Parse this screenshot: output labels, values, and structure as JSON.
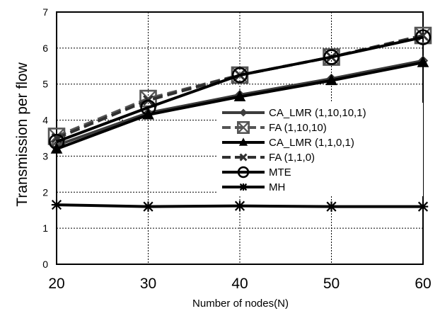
{
  "chart_data": {
    "type": "line",
    "title": "",
    "xlabel": "Number of nodes(N)",
    "ylabel": "Transmission per flow",
    "x": [
      20,
      30,
      40,
      50,
      60
    ],
    "xticks": [
      "20",
      "30",
      "40",
      "50",
      "60"
    ],
    "yticks": [
      "0",
      "1",
      "2",
      "3",
      "4",
      "5",
      "6",
      "7"
    ],
    "xlim": [
      20,
      60
    ],
    "ylim": [
      0,
      7
    ],
    "grid": true,
    "legend_position": "right",
    "series": [
      {
        "name": "CA_LMR (1,10,10,1)",
        "values": [
          3.3,
          4.2,
          4.7,
          5.15,
          5.65
        ],
        "marker": "diamond",
        "color": "#3c3c3c",
        "dash": "solid"
      },
      {
        "name": "FA (1,10,10)",
        "values": [
          3.55,
          4.6,
          5.25,
          5.75,
          6.35
        ],
        "marker": "square",
        "color": "#555555",
        "dash": "dashed"
      },
      {
        "name": "CA_LMR (1,1,0,1)",
        "values": [
          3.2,
          4.15,
          4.65,
          5.1,
          5.6
        ],
        "marker": "triangle",
        "color": "#000000",
        "dash": "solid"
      },
      {
        "name": "FA (1,1,0)",
        "values": [
          3.5,
          4.55,
          5.25,
          5.75,
          6.35
        ],
        "marker": "x",
        "color": "#303030",
        "dash": "dashed"
      },
      {
        "name": "MTE",
        "values": [
          3.4,
          4.35,
          5.25,
          5.75,
          6.3
        ],
        "marker": "circle",
        "color": "#000000",
        "dash": "solid"
      },
      {
        "name": "MH",
        "values": [
          1.65,
          1.6,
          1.62,
          1.6,
          1.6
        ],
        "marker": "star",
        "color": "#000000",
        "dash": "solid"
      }
    ]
  }
}
